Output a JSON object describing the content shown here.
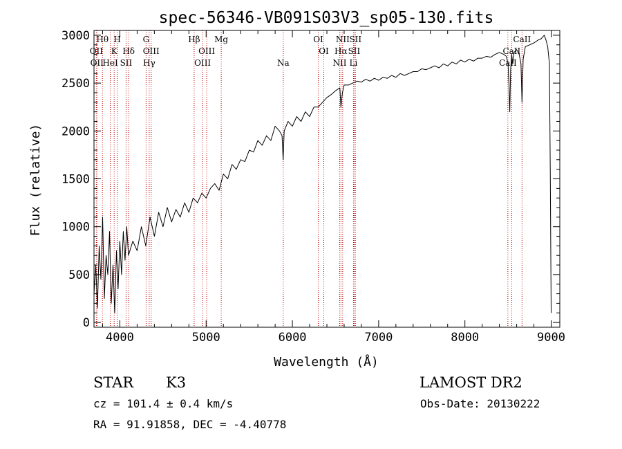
{
  "chart_data": {
    "type": "line",
    "title": "spec-56346-VB091S03V3_sp05-130.fits",
    "xlabel": "Wavelength (Å)",
    "ylabel": "Flux (relative)",
    "xlim": [
      3700,
      9100
    ],
    "ylim": [
      -50,
      3050
    ],
    "x_ticks": [
      4000,
      5000,
      6000,
      7000,
      8000,
      9000
    ],
    "y_ticks": [
      0,
      500,
      1000,
      1500,
      2000,
      2500,
      3000
    ],
    "grid": false,
    "series": [
      {
        "x": [
          3700,
          3720,
          3740,
          3760,
          3780,
          3800,
          3820,
          3840,
          3860,
          3880,
          3900,
          3920,
          3940,
          3960,
          3980,
          4000,
          4020,
          4040,
          4060,
          4080,
          4100,
          4150,
          4200,
          4250,
          4300,
          4350,
          4400,
          4450,
          4500,
          4550,
          4600,
          4650,
          4700,
          4750,
          4800,
          4850,
          4900,
          4950,
          5000,
          5050,
          5100,
          5150,
          5200,
          5250,
          5300,
          5350,
          5400,
          5450,
          5500,
          5550,
          5600,
          5650,
          5700,
          5750,
          5800,
          5850,
          5880,
          5893,
          5905,
          5950,
          6000,
          6050,
          6100,
          6150,
          6200,
          6250,
          6300,
          6350,
          6400,
          6450,
          6500,
          6550,
          6563,
          6580,
          6600,
          6650,
          6700,
          6750,
          6800,
          6850,
          6900,
          6950,
          7000,
          7050,
          7100,
          7150,
          7200,
          7250,
          7300,
          7350,
          7400,
          7450,
          7500,
          7550,
          7600,
          7650,
          7700,
          7750,
          7800,
          7850,
          7900,
          7950,
          8000,
          8050,
          8100,
          8150,
          8200,
          8250,
          8300,
          8350,
          8400,
          8450,
          8480,
          8500,
          8510,
          8520,
          8530,
          8542,
          8555,
          8570,
          8600,
          8630,
          8650,
          8662,
          8675,
          8700,
          8750,
          8800,
          8850,
          8880,
          8900,
          8920,
          8940,
          8960,
          8980,
          8990,
          9000
        ],
        "y": [
          300,
          600,
          150,
          800,
          450,
          1100,
          250,
          700,
          500,
          950,
          200,
          600,
          100,
          750,
          350,
          850,
          500,
          950,
          650,
          1000,
          700,
          850,
          750,
          1000,
          800,
          1100,
          900,
          1150,
          1000,
          1200,
          1050,
          1180,
          1100,
          1250,
          1150,
          1300,
          1250,
          1350,
          1300,
          1400,
          1450,
          1380,
          1550,
          1500,
          1650,
          1600,
          1700,
          1680,
          1800,
          1780,
          1900,
          1850,
          1950,
          1900,
          2050,
          2000,
          1950,
          1700,
          2000,
          2100,
          2050,
          2150,
          2100,
          2200,
          2150,
          2250,
          2250,
          2300,
          2350,
          2380,
          2420,
          2450,
          2250,
          2400,
          2480,
          2480,
          2500,
          2520,
          2510,
          2540,
          2520,
          2550,
          2530,
          2560,
          2550,
          2580,
          2560,
          2600,
          2580,
          2600,
          2620,
          2620,
          2650,
          2640,
          2660,
          2680,
          2660,
          2700,
          2680,
          2720,
          2700,
          2740,
          2720,
          2750,
          2730,
          2760,
          2760,
          2780,
          2770,
          2800,
          2820,
          2800,
          2780,
          2700,
          2500,
          2200,
          2650,
          2800,
          2700,
          2820,
          2850,
          2800,
          2700,
          2300,
          2750,
          2880,
          2900,
          2920,
          2950,
          2960,
          2980,
          3000,
          2950,
          2880,
          2700,
          1500,
          100
        ]
      }
    ],
    "lines": [
      {
        "x": 3727,
        "label": "OII",
        "row": 1
      },
      {
        "x": 3734,
        "label": "OII",
        "row": 2
      },
      {
        "x": 3798,
        "label": "Hθ",
        "row": 0
      },
      {
        "x": 3889,
        "label": "HeI",
        "row": 2
      },
      {
        "x": 3934,
        "label": "K",
        "row": 1
      },
      {
        "x": 3969,
        "label": "H",
        "row": 0
      },
      {
        "x": 4072,
        "label": "SII",
        "row": 2
      },
      {
        "x": 4102,
        "label": "Hδ",
        "row": 1
      },
      {
        "x": 4304,
        "label": "G",
        "row": 0
      },
      {
        "x": 4340,
        "label": "Hγ",
        "row": 2
      },
      {
        "x": 4363,
        "label": "OIII",
        "row": 1
      },
      {
        "x": 4861,
        "label": "Hβ",
        "row": 0
      },
      {
        "x": 4959,
        "label": "OIII",
        "row": 2
      },
      {
        "x": 5007,
        "label": "OIII",
        "row": 1
      },
      {
        "x": 5175,
        "label": "Mg",
        "row": 0
      },
      {
        "x": 5894,
        "label": "Na",
        "row": 2
      },
      {
        "x": 6300,
        "label": "OI",
        "row": 0
      },
      {
        "x": 6364,
        "label": "OI",
        "row": 1
      },
      {
        "x": 6548,
        "label": "NII",
        "row": 2
      },
      {
        "x": 6563,
        "label": "Hα",
        "row": 1
      },
      {
        "x": 6583,
        "label": "NII",
        "row": 0
      },
      {
        "x": 6708,
        "label": "Li",
        "row": 2
      },
      {
        "x": 6716,
        "label": "SII",
        "row": 1
      },
      {
        "x": 6731,
        "label": "SII",
        "row": 0
      },
      {
        "x": 8498,
        "label": "CaII",
        "row": 2
      },
      {
        "x": 8542,
        "label": "CaII",
        "row": 1
      },
      {
        "x": 8662,
        "label": "CaII",
        "row": 0
      }
    ]
  },
  "info": {
    "class": "STAR",
    "subclass": "K3",
    "survey": "LAMOST DR2",
    "cz": "cz = 101.4 ± 0.4 km/s",
    "obs_date": "Obs-Date: 20130222",
    "radec": "RA =  91.91858, DEC =  -4.40778"
  }
}
